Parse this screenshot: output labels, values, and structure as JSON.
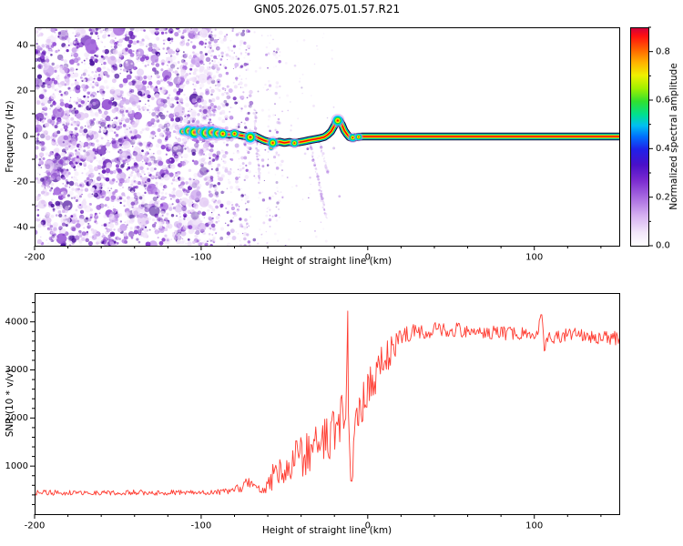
{
  "title": "GN05.2026.075.01.57.R21",
  "chart_data": [
    {
      "type": "heatmap",
      "title": "GN05.2026.075.01.57.R21",
      "xlabel": "Height of straight line (km)",
      "ylabel": "Frequency (Hz)",
      "xlim": [
        -200,
        151
      ],
      "ylim": [
        -48,
        48
      ],
      "xticks": [
        -200,
        -100,
        0,
        100
      ],
      "xtick_minor_step": 20,
      "yticks": [
        -40,
        -20,
        0,
        20,
        40
      ],
      "ytick_minor_step": 10,
      "colorbar": {
        "label": "Normalized spectral amplitude",
        "ticks": [
          "0.0",
          "0.2",
          "0.4",
          "0.6",
          "0.8"
        ],
        "tick_values": [
          0,
          0.2,
          0.4,
          0.6,
          0.8
        ],
        "range": [
          0,
          0.9
        ],
        "stops": [
          [
            "#ffffff",
            0
          ],
          [
            "#f2e6fa",
            0.06
          ],
          [
            "#d4aef0",
            0.14
          ],
          [
            "#a86ae0",
            0.22
          ],
          [
            "#7a2ad0",
            0.3
          ],
          [
            "#4a10c8",
            0.37
          ],
          [
            "#2020e8",
            0.44
          ],
          [
            "#0070ff",
            0.5
          ],
          [
            "#00c0f0",
            0.55
          ],
          [
            "#00e090",
            0.6
          ],
          [
            "#30e030",
            0.66
          ],
          [
            "#a0f000",
            0.72
          ],
          [
            "#f0f000",
            0.78
          ],
          [
            "#ffb000",
            0.84
          ],
          [
            "#ff6000",
            0.9
          ],
          [
            "#ff1010",
            0.96
          ],
          [
            "#cc0040",
            1
          ]
        ]
      },
      "signal_trace": {
        "points": [
          [
            -86,
            1.2
          ],
          [
            -83,
            0.8
          ],
          [
            -80,
            1.4
          ],
          [
            -77,
            0.6
          ],
          [
            -74,
            0.2
          ],
          [
            -71,
            -0.4
          ],
          [
            -68,
            0.3
          ],
          [
            -65,
            -0.8
          ],
          [
            -62,
            -1.8
          ],
          [
            -59,
            -2.4
          ],
          [
            -56,
            -2.8
          ],
          [
            -53,
            -2.3
          ],
          [
            -50,
            -2.8
          ],
          [
            -47,
            -2.4
          ],
          [
            -44,
            -2.9
          ],
          [
            -41,
            -2.5
          ],
          [
            -38,
            -2.1
          ],
          [
            -35,
            -1.6
          ],
          [
            -32,
            -1.2
          ],
          [
            -29,
            -0.8
          ],
          [
            -26,
            -0.2
          ],
          [
            -24,
            0.8
          ],
          [
            -22,
            2.2
          ],
          [
            -20,
            4.8
          ],
          [
            -18.5,
            7.2
          ],
          [
            -17,
            7
          ],
          [
            -15.5,
            5.2
          ],
          [
            -14,
            2.6
          ],
          [
            -12.5,
            1
          ],
          [
            -11,
            -0.3
          ],
          [
            -9,
            -0.6
          ],
          [
            -7,
            -0.3
          ],
          [
            -5,
            -0.1
          ],
          [
            -3,
            0
          ],
          [
            151,
            0
          ]
        ]
      },
      "blobs": [
        [
          -111,
          2.2,
          3
        ],
        [
          -107.5,
          2.5,
          4.5
        ],
        [
          -104,
          1.8,
          5
        ],
        [
          -100.5,
          2.2,
          4
        ],
        [
          -97,
          1.6,
          5.5
        ],
        [
          -93.5,
          1.8,
          5
        ],
        [
          -90,
          1.4,
          4.5
        ],
        [
          -87,
          1.2,
          4
        ],
        [
          -80,
          1.2,
          3.5
        ],
        [
          -70.5,
          -0.3,
          4.5
        ],
        [
          -58,
          -5,
          2
        ],
        [
          -57,
          -2.8,
          4
        ],
        [
          -44,
          -2.9,
          3.2
        ],
        [
          -18,
          7,
          4.2
        ],
        [
          -9,
          -0.5,
          3.2
        ],
        [
          -5.5,
          -0.2,
          2.8
        ]
      ],
      "noise": {
        "colors": [
          "#f1e4fa",
          "#e2c8f4",
          "#cba4ee",
          "#ab72e0",
          "#8a40d0",
          "#661bb8",
          "#4a0f9e"
        ],
        "dense": {
          "x_range": [
            -200,
            -95
          ],
          "count": 2600
        },
        "taper": {
          "x_range": [
            -95,
            -70
          ],
          "count": 450
        },
        "columns": {
          "x_range": [
            -78,
            -50
          ],
          "count": 16,
          "dots_min": 6,
          "dots_max": 26
        },
        "sparse": {
          "x_range": [
            -50,
            -15
          ],
          "count": 60
        }
      },
      "streaks": [
        {
          "x1": -35,
          "y1": -1,
          "x2": -25,
          "y2": -36
        },
        {
          "x1": -29,
          "y1": -2,
          "x2": -24,
          "y2": -16
        },
        {
          "x1": -68,
          "y1": 12,
          "x2": -65,
          "y2": -20
        }
      ]
    },
    {
      "type": "line",
      "xlabel": "Height of straight line (km)",
      "ylabel": "SNR (10 * v/v)",
      "xlim": [
        -200,
        151
      ],
      "ylim": [
        0,
        4600
      ],
      "xticks": [
        -200,
        -100,
        0,
        100
      ],
      "xtick_minor_step": 20,
      "yticks": [
        1000,
        2000,
        3000,
        4000
      ],
      "ytick_minor_step": 200,
      "line_color": "#ff3b30",
      "series": [
        {
          "name": "SNR",
          "points": [
            [
              -200,
              450,
              55
            ],
            [
              -190,
              445,
              55
            ],
            [
              -180,
              450,
              55
            ],
            [
              -170,
              445,
              55
            ],
            [
              -160,
              450,
              55
            ],
            [
              -150,
              448,
              55
            ],
            [
              -140,
              452,
              55
            ],
            [
              -130,
              448,
              55
            ],
            [
              -120,
              450,
              55
            ],
            [
              -110,
              452,
              55
            ],
            [
              -100,
              455,
              55
            ],
            [
              -95,
              460,
              60
            ],
            [
              -90,
              465,
              60
            ],
            [
              -85,
              480,
              70
            ],
            [
              -80,
              500,
              80
            ],
            [
              -76,
              560,
              100
            ],
            [
              -72,
              640,
              130
            ],
            [
              -69,
              620,
              120
            ],
            [
              -66,
              520,
              90
            ],
            [
              -63,
              500,
              90
            ],
            [
              -60,
              560,
              140
            ],
            [
              -57,
              780,
              280
            ],
            [
              -54,
              820,
              300
            ],
            [
              -51,
              900,
              350
            ],
            [
              -48,
              1000,
              380
            ],
            [
              -45,
              1050,
              420
            ],
            [
              -42,
              1150,
              450
            ],
            [
              -39,
              1250,
              500
            ],
            [
              -36,
              1350,
              520
            ],
            [
              -33,
              1400,
              550
            ],
            [
              -30,
              1500,
              550
            ],
            [
              -27,
              1550,
              560
            ],
            [
              -24,
              1650,
              580
            ],
            [
              -21,
              1700,
              600
            ],
            [
              -18,
              1800,
              620
            ],
            [
              -15,
              1950,
              650
            ],
            [
              -13.2,
              2300,
              700
            ],
            [
              -12.4,
              3300,
              600
            ],
            [
              -12,
              4300,
              80
            ],
            [
              -11.6,
              2600,
              600
            ],
            [
              -11,
              1400,
              400
            ],
            [
              -10.2,
              800,
              250
            ],
            [
              -9.5,
              600,
              180
            ],
            [
              -8.5,
              1200,
              400
            ],
            [
              -7,
              1900,
              550
            ],
            [
              -5,
              2200,
              550
            ],
            [
              -3,
              2300,
              500
            ],
            [
              -1,
              2500,
              480
            ],
            [
              1,
              2650,
              450
            ],
            [
              4,
              2850,
              420
            ],
            [
              7,
              3050,
              380
            ],
            [
              10,
              3200,
              350
            ],
            [
              13,
              3350,
              320
            ],
            [
              16,
              3500,
              280
            ],
            [
              20,
              3650,
              230
            ],
            [
              24,
              3730,
              190
            ],
            [
              28,
              3790,
              170
            ],
            [
              35,
              3820,
              160
            ],
            [
              45,
              3840,
              150
            ],
            [
              55,
              3830,
              150
            ],
            [
              65,
              3810,
              150
            ],
            [
              75,
              3790,
              150
            ],
            [
              85,
              3760,
              150
            ],
            [
              95,
              3750,
              150
            ],
            [
              102,
              3780,
              140
            ],
            [
              104.5,
              4150,
              60
            ],
            [
              106,
              3450,
              150
            ],
            [
              108,
              3650,
              150
            ],
            [
              115,
              3700,
              150
            ],
            [
              125,
              3720,
              150
            ],
            [
              135,
              3690,
              150
            ],
            [
              145,
              3670,
              150
            ],
            [
              151,
              3650,
              150
            ]
          ]
        }
      ]
    }
  ]
}
